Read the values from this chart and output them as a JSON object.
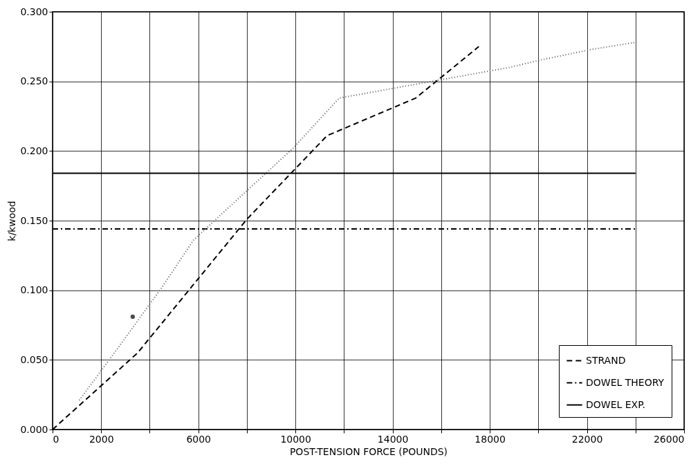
{
  "chart_data": {
    "type": "line",
    "xlabel": "POST-TENSION FORCE (POUNDS)",
    "ylabel": "k/kwood",
    "xlim": [
      0,
      26000
    ],
    "ylim": [
      0,
      0.3
    ],
    "xticks": [
      0,
      2000,
      {
        "value": 4000,
        "label": null
      },
      6000,
      {
        "value": 8000,
        "label": null
      },
      10000,
      {
        "value": 12000,
        "label": null
      },
      14000,
      {
        "value": 16000,
        "label": null
      },
      18000,
      {
        "value": 20000,
        "label": null
      },
      22000,
      {
        "value": 24000,
        "label": null
      },
      26000
    ],
    "yticks": [
      {
        "value": 0,
        "label": "0.000"
      },
      {
        "value": 0.05,
        "label": "0.050"
      },
      {
        "value": 0.1,
        "label": "0.100"
      },
      {
        "value": 0.15,
        "label": "0.150"
      },
      {
        "value": 0.2,
        "label": "0.200"
      },
      {
        "value": 0.25,
        "label": "0.250"
      },
      {
        "value": 0.3,
        "label": "0.300"
      }
    ],
    "grid": true,
    "legend": "bottom right",
    "series": [
      {
        "name": "STRAND",
        "color": "#000000",
        "line_style": "dashed",
        "x": [
          0,
          3500,
          8000,
          11300,
          14950,
          17550
        ],
        "values": [
          0,
          0.055,
          0.151,
          0.211,
          0.238,
          0.275
        ]
      },
      {
        "color": "#555555",
        "line_style": "dotted",
        "x": [
          1100,
          2500,
          4500,
          5800,
          7100,
          9900,
          11800,
          13700,
          18800,
          20000,
          22200,
          24000
        ],
        "values": [
          0.021,
          0.054,
          0.102,
          0.136,
          0.157,
          0.202,
          0.238,
          0.244,
          0.26,
          0.265,
          0.273,
          0.278
        ]
      },
      {
        "name": "DOWEL THEORY",
        "color": "#000000",
        "line_style": "dashdot",
        "x": [
          0,
          24000
        ],
        "values": [
          0.144,
          0.144
        ]
      },
      {
        "name": "DOWEL EXP.",
        "color": "#000000",
        "line_style": "solid",
        "x": [
          0,
          24000
        ],
        "values": [
          0.184,
          0.184
        ]
      },
      {
        "type": "scatter",
        "color": "#000000",
        "marker": "circle",
        "x": [
          3300
        ],
        "values": [
          0.081
        ]
      }
    ]
  }
}
